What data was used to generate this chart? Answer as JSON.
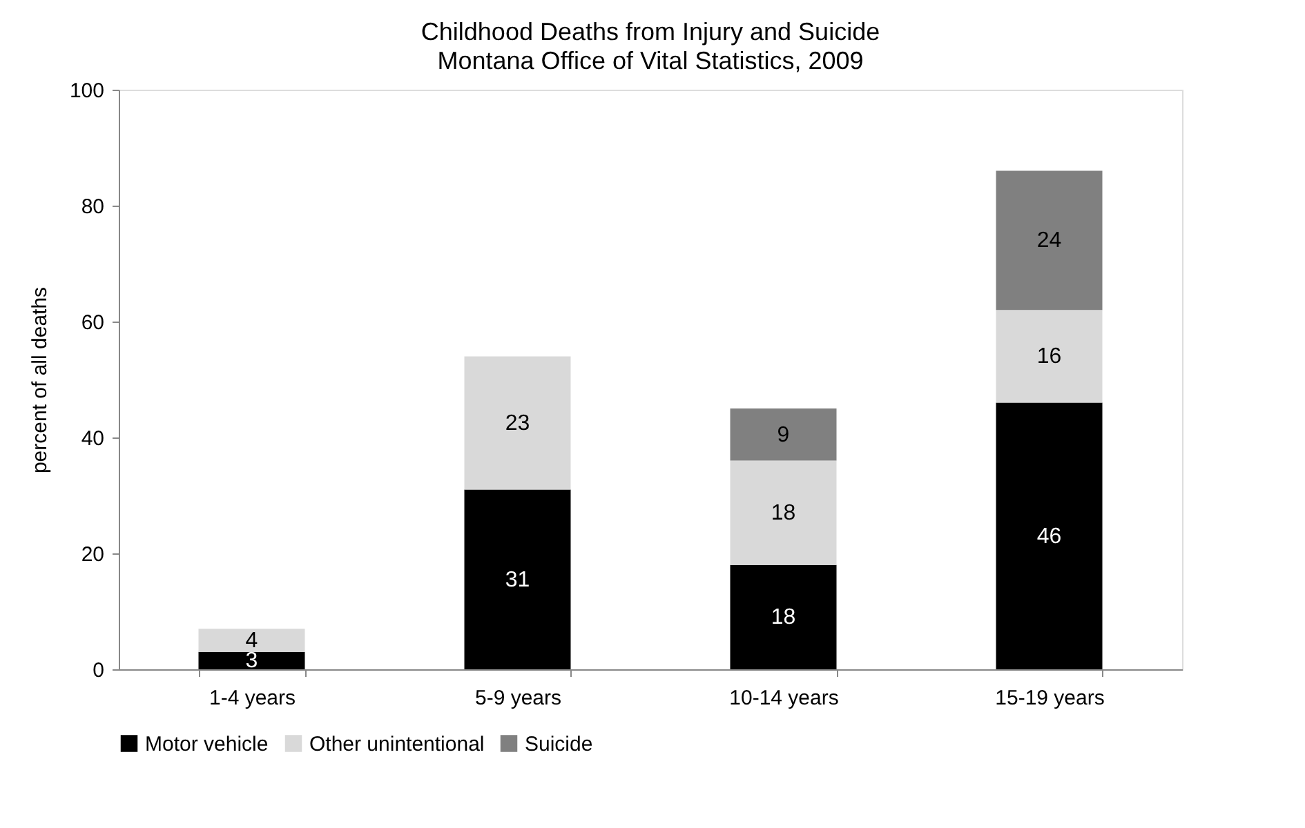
{
  "chart_data": {
    "type": "bar",
    "title": "Childhood Deaths from Injury and Suicide",
    "subtitle": "Montana Office of Vital Statistics, 2009",
    "ylabel": "percent of all deaths",
    "categories": [
      "1-4 years",
      "5-9 years",
      "10-14 years",
      "15-19 years"
    ],
    "series": [
      {
        "name": "Motor vehicle",
        "color": "#000000",
        "values": [
          3,
          31,
          18,
          46
        ]
      },
      {
        "name": "Other unintentional",
        "color": "#d9d9d9",
        "values": [
          4,
          23,
          18,
          16
        ]
      },
      {
        "name": "Suicide",
        "color": "#808080",
        "values": [
          null,
          null,
          9,
          24
        ]
      }
    ],
    "stacked": true,
    "ylim": [
      0,
      100
    ],
    "yticks": [
      0,
      20,
      40,
      60,
      80,
      100
    ],
    "grid": false,
    "legend": "bottom",
    "data_labels": true
  }
}
